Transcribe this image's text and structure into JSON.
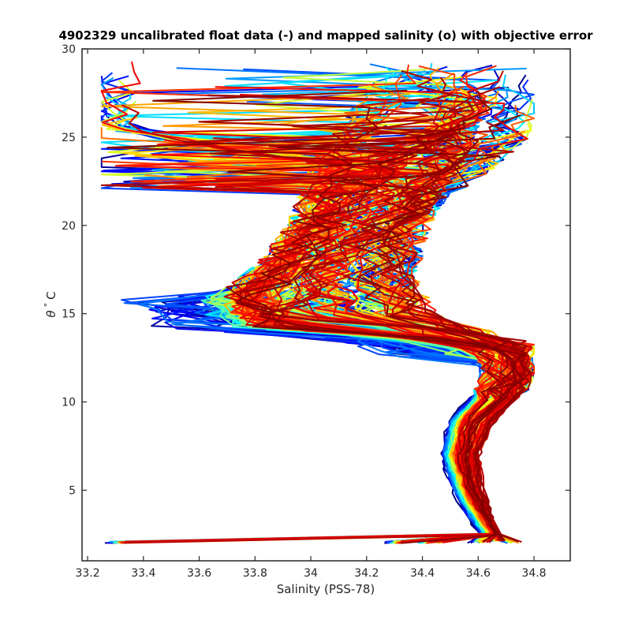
{
  "chart_data": {
    "type": "line",
    "title": "4902329 uncalibrated float data (-) and mapped salinity (o) with objective error",
    "xlabel": "Salinity (PSS-78)",
    "ylabel_symbol": "θ",
    "ylabel_degree": "°",
    "ylabel_unit": "C",
    "xlim": [
      33.18,
      34.93
    ],
    "ylim": [
      1,
      30
    ],
    "xticks": [
      33.2,
      33.4,
      33.6,
      33.8,
      34,
      34.2,
      34.4,
      34.6,
      34.8
    ],
    "xtick_labels": [
      "33.2",
      "33.4",
      "33.6",
      "33.8",
      "34",
      "34.2",
      "34.4",
      "34.6",
      "34.8"
    ],
    "yticks": [
      5,
      10,
      15,
      20,
      25,
      30
    ],
    "ytick_labels": [
      "5",
      "10",
      "15",
      "20",
      "25",
      "30"
    ],
    "grid": false,
    "colormap": "jet",
    "colormap_stops": [
      "#00007f",
      "#0000ff",
      "#007fff",
      "#00ffff",
      "#7fff7f",
      "#ffff00",
      "#ff7f00",
      "#ff0000",
      "#7f0000"
    ],
    "num_profiles": 240,
    "series": [
      {
        "points": [
          [
            34.66,
            2.1
          ],
          [
            34.6,
            3.3
          ],
          [
            34.54,
            5.0
          ],
          [
            34.5,
            7.0
          ],
          [
            34.53,
            9.0
          ],
          [
            34.64,
            10.8
          ],
          [
            34.66,
            12.0
          ],
          [
            34.6,
            13.2
          ],
          [
            34.2,
            14.0
          ],
          [
            33.8,
            14.7
          ],
          [
            33.75,
            16.0
          ],
          [
            33.9,
            18.0
          ],
          [
            34.0,
            20.0
          ],
          [
            34.05,
            22.0
          ],
          [
            34.1,
            24.0
          ],
          [
            34.2,
            26.0
          ],
          [
            34.3,
            28.0
          ]
        ]
      },
      {
        "points": [
          [
            34.66,
            2.1
          ],
          [
            34.61,
            3.3
          ],
          [
            34.55,
            5.0
          ],
          [
            34.52,
            7.0
          ],
          [
            34.56,
            9.0
          ],
          [
            34.7,
            10.8
          ],
          [
            34.73,
            12.0
          ],
          [
            34.7,
            13.0
          ],
          [
            34.3,
            13.8
          ],
          [
            33.85,
            14.2
          ],
          [
            33.8,
            16.0
          ],
          [
            33.95,
            18.0
          ],
          [
            34.05,
            20.0
          ],
          [
            34.15,
            22.0
          ],
          [
            34.3,
            24.0
          ],
          [
            34.55,
            26.0
          ],
          [
            34.6,
            28.0
          ]
        ]
      },
      {
        "points": [
          [
            34.66,
            2.1
          ],
          [
            34.61,
            3.3
          ],
          [
            34.56,
            5.0
          ],
          [
            34.53,
            7.0
          ],
          [
            34.57,
            9.0
          ],
          [
            34.72,
            10.8
          ],
          [
            34.75,
            12.0
          ],
          [
            34.72,
            13.0
          ],
          [
            34.5,
            14.0
          ],
          [
            34.3,
            15.0
          ],
          [
            34.2,
            17.0
          ],
          [
            34.25,
            19.0
          ],
          [
            34.35,
            21.0
          ],
          [
            34.55,
            23.0
          ],
          [
            34.7,
            25.0
          ],
          [
            34.72,
            26.5
          ]
        ]
      },
      {
        "points": [
          [
            34.66,
            2.1
          ],
          [
            34.61,
            3.3
          ],
          [
            34.57,
            5.0
          ],
          [
            34.55,
            7.0
          ],
          [
            34.6,
            9.0
          ],
          [
            34.73,
            10.8
          ],
          [
            34.76,
            12.0
          ],
          [
            34.7,
            13.0
          ],
          [
            34.4,
            14.0
          ],
          [
            34.1,
            15.0
          ],
          [
            34.05,
            17.0
          ],
          [
            34.1,
            19.0
          ],
          [
            34.2,
            21.0
          ],
          [
            34.3,
            23.0
          ],
          [
            33.5,
            25.0
          ],
          [
            33.3,
            25.6
          ]
        ]
      },
      {
        "points": [
          [
            34.66,
            2.1
          ],
          [
            34.62,
            3.3
          ],
          [
            34.58,
            5.0
          ],
          [
            34.56,
            7.0
          ],
          [
            34.62,
            9.0
          ],
          [
            34.74,
            10.8
          ],
          [
            34.76,
            12.0
          ],
          [
            34.72,
            13.2
          ],
          [
            34.55,
            14.0
          ],
          [
            34.35,
            15.0
          ],
          [
            34.3,
            17.0
          ],
          [
            34.32,
            19.0
          ],
          [
            34.38,
            21.0
          ],
          [
            34.45,
            23.0
          ],
          [
            34.5,
            25.0
          ],
          [
            34.55,
            27.0
          ],
          [
            34.45,
            29.0
          ]
        ]
      },
      {
        "points": [
          [
            34.66,
            2.1
          ],
          [
            34.62,
            3.3
          ],
          [
            34.59,
            5.0
          ],
          [
            34.57,
            7.0
          ],
          [
            34.63,
            9.0
          ],
          [
            34.74,
            10.8
          ],
          [
            34.76,
            12.0
          ],
          [
            34.74,
            13.0
          ],
          [
            34.5,
            14.0
          ],
          [
            34.1,
            14.6
          ],
          [
            33.9,
            15.0
          ],
          [
            34.0,
            17.0
          ],
          [
            34.15,
            19.0
          ],
          [
            34.3,
            21.0
          ],
          [
            34.45,
            23.0
          ],
          [
            34.55,
            25.0
          ],
          [
            34.45,
            27.0
          ],
          [
            34.4,
            28.5
          ]
        ]
      }
    ]
  }
}
